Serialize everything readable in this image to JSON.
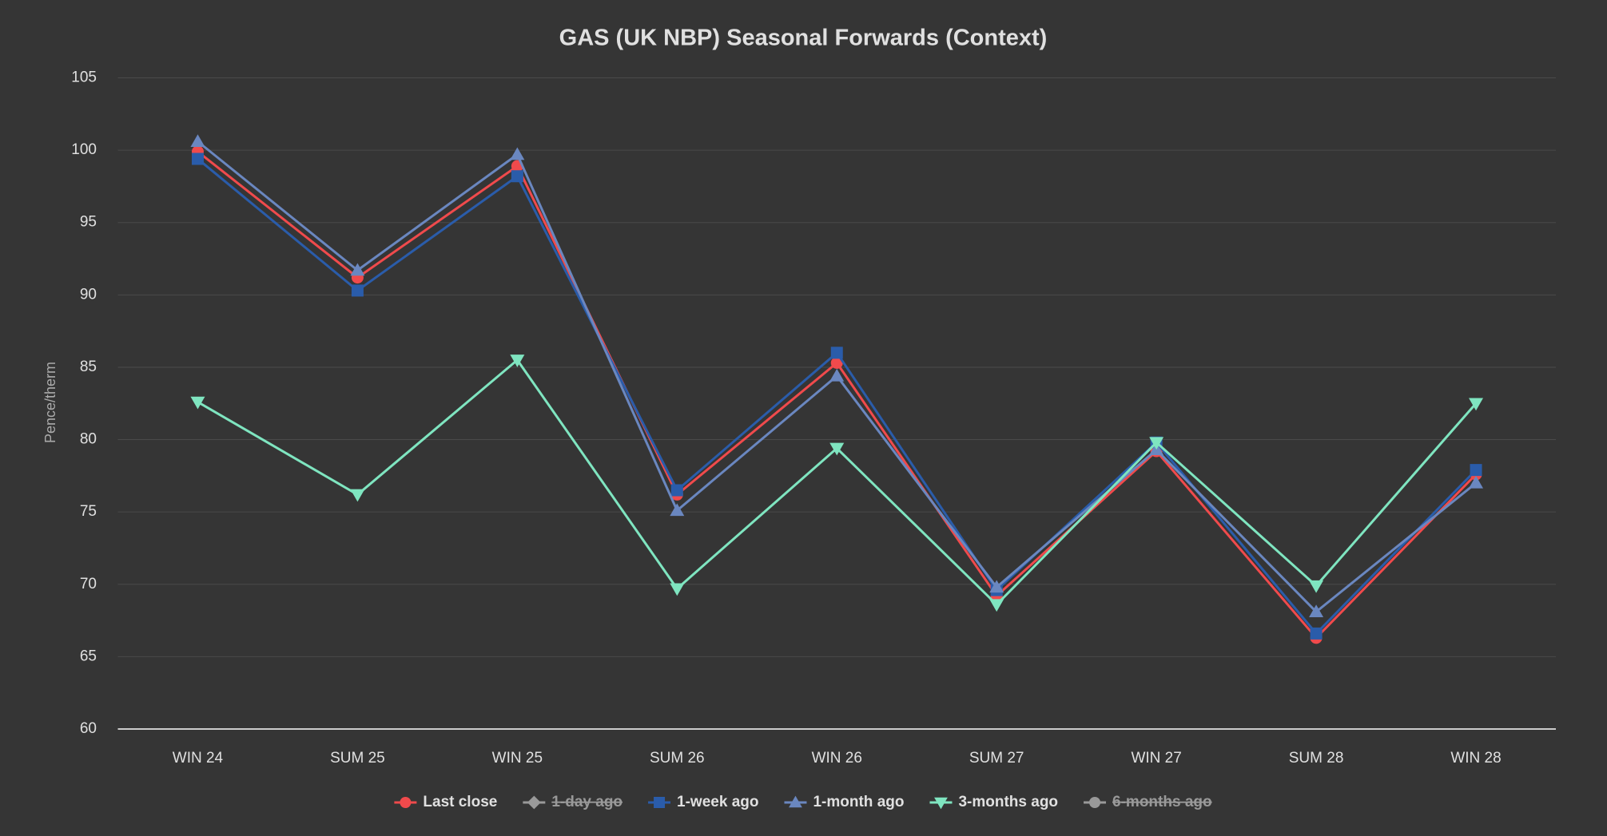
{
  "chart_data": {
    "type": "line",
    "title": "GAS (UK NBP) Seasonal Forwards (Context)",
    "y_label": "Pence/therm",
    "categories": [
      "WIN 24",
      "SUM 25",
      "WIN 25",
      "SUM 26",
      "WIN 26",
      "SUM 27",
      "WIN 27",
      "SUM 28",
      "WIN 28"
    ],
    "series": [
      {
        "name": "Last close",
        "color": "#f04a4c",
        "marker": "circle",
        "values": [
          99.9,
          91.2,
          98.9,
          76.2,
          85.3,
          69.2,
          79.2,
          66.3,
          77.6
        ]
      },
      {
        "name": "1-day ago",
        "color": "#999999",
        "marker": "diamond",
        "hidden": true
      },
      {
        "name": "1-week ago",
        "color": "#2a5caa",
        "marker": "square",
        "values": [
          99.4,
          90.3,
          98.2,
          76.5,
          86.0,
          69.6,
          79.8,
          66.6,
          77.9
        ]
      },
      {
        "name": "1-month ago",
        "color": "#6a87c0",
        "marker": "triangle",
        "values": [
          100.6,
          91.7,
          99.7,
          75.1,
          84.4,
          69.8,
          79.3,
          68.1,
          77.0
        ]
      },
      {
        "name": "3-months ago",
        "color": "#7fe5c0",
        "marker": "triangle-down",
        "values": [
          82.6,
          76.2,
          85.5,
          69.7,
          79.4,
          68.6,
          79.8,
          69.9,
          82.5
        ]
      },
      {
        "name": "6-months ago",
        "color": "#999999",
        "marker": "circle",
        "hidden": true
      }
    ],
    "ylim": [
      60,
      105
    ],
    "yticks": [
      60,
      65,
      70,
      75,
      80,
      85,
      90,
      95,
      100,
      105
    ],
    "grid": true,
    "legend": "bottom"
  }
}
